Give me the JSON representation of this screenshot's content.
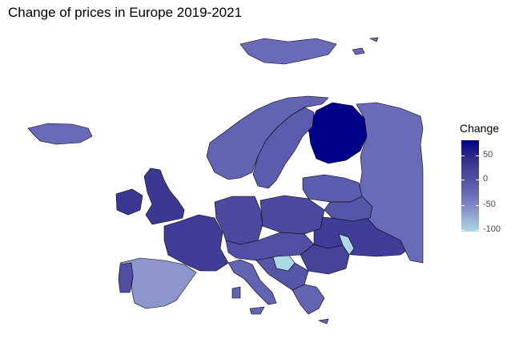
{
  "title": "Change of prices in Europe 2019-2021",
  "legend": {
    "title": "Change",
    "ticks": [
      "50",
      "0",
      "-50",
      "-100"
    ],
    "scale_colors": {
      "high": "#00008b",
      "low": "#add8e6"
    }
  },
  "map_data": {
    "type": "choropleth",
    "variable": "Change",
    "range": [
      -100,
      75
    ],
    "regions": [
      {
        "name": "Finland",
        "value": 75,
        "color": "#00008b"
      },
      {
        "name": "United Kingdom",
        "value": 40,
        "color": "#3b3894"
      },
      {
        "name": "Ireland",
        "value": 40,
        "color": "#3b3894"
      },
      {
        "name": "France",
        "value": 35,
        "color": "#403c98"
      },
      {
        "name": "Ukraine",
        "value": 35,
        "color": "#403c98"
      },
      {
        "name": "Romania",
        "value": 30,
        "color": "#46439b"
      },
      {
        "name": "Spain",
        "value": -45,
        "color": "#8c96cd"
      },
      {
        "name": "Bosnia and Herzegovina",
        "value": -100,
        "color": "#add8e6"
      },
      {
        "name": "Moldova",
        "value": -100,
        "color": "#add8e6"
      },
      {
        "name": "Russia",
        "value": 0,
        "color": "#6a6bb8"
      },
      {
        "name": "Norway",
        "value": 5,
        "color": "#6264b2"
      },
      {
        "name": "Sweden",
        "value": 10,
        "color": "#5b5cad"
      },
      {
        "name": "Iceland",
        "value": 0,
        "color": "#6a6bb8"
      },
      {
        "name": "Svalbard",
        "value": 0,
        "color": "#6a6bb8"
      },
      {
        "name": "Germany",
        "value": 25,
        "color": "#4c49a0"
      },
      {
        "name": "Poland",
        "value": 25,
        "color": "#4c49a0"
      },
      {
        "name": "Italy",
        "value": 5,
        "color": "#6264b2"
      },
      {
        "name": "Portugal",
        "value": 20,
        "color": "#514fa4"
      },
      {
        "name": "Baltics",
        "value": 10,
        "color": "#5b5cad"
      },
      {
        "name": "Belarus",
        "value": 15,
        "color": "#5556a8"
      },
      {
        "name": "Balkans",
        "value": 15,
        "color": "#5556a8"
      },
      {
        "name": "Greece",
        "value": 5,
        "color": "#6264b2"
      },
      {
        "name": "Central Europe",
        "value": 20,
        "color": "#514fa4"
      }
    ]
  }
}
